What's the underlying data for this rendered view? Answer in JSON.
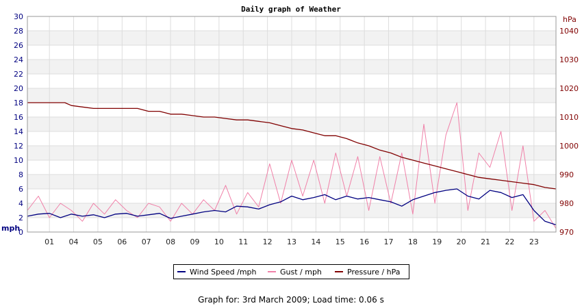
{
  "chart_data": {
    "type": "line",
    "title": "Daily graph of Weather",
    "left_axis": {
      "unit_label": "mph",
      "ylim": [
        0,
        30
      ],
      "ticks": [
        "0",
        "2",
        "4",
        "6",
        "8",
        "10",
        "12",
        "14",
        "16",
        "18",
        "20",
        "22",
        "24",
        "26",
        "28",
        "30"
      ],
      "color": "#000080"
    },
    "right_axis": {
      "unit_label": "hPa",
      "ylim": [
        970,
        1045
      ],
      "ticks": [
        "970",
        "980",
        "990",
        "1000",
        "1010",
        "1020",
        "1030",
        "1040"
      ],
      "color": "#800000"
    },
    "x_axis": {
      "xlim": [
        0,
        24
      ],
      "ticks": [
        "01",
        "04",
        "05",
        "06",
        "07",
        "08",
        "09",
        "10",
        "11",
        "12",
        "13",
        "14",
        "15",
        "16",
        "17",
        "18",
        "19",
        "20",
        "21",
        "22",
        "23"
      ]
    },
    "grid": true,
    "legend_position": "bottom-center",
    "series": [
      {
        "name": "Wind Speed /mph",
        "axis": "left",
        "color": "#000080",
        "x": [
          0,
          0.5,
          1,
          1.5,
          2,
          2.5,
          3,
          3.5,
          4,
          4.5,
          5,
          5.5,
          6,
          6.5,
          7,
          7.5,
          8,
          8.5,
          9,
          9.5,
          10,
          10.5,
          11,
          11.5,
          12,
          12.5,
          13,
          13.5,
          14,
          14.5,
          15,
          15.5,
          16,
          16.5,
          17,
          17.5,
          18,
          18.5,
          19,
          19.5,
          20,
          20.5,
          21,
          21.5,
          22,
          22.5,
          23,
          23.5,
          24
        ],
        "values": [
          2.2,
          2.5,
          2.6,
          2.0,
          2.5,
          2.2,
          2.4,
          2.0,
          2.5,
          2.6,
          2.2,
          2.4,
          2.6,
          1.9,
          2.2,
          2.5,
          2.8,
          3.0,
          2.8,
          3.6,
          3.5,
          3.2,
          3.8,
          4.2,
          5.0,
          4.5,
          4.8,
          5.2,
          4.5,
          5.0,
          4.6,
          4.8,
          4.5,
          4.2,
          3.6,
          4.5,
          5.0,
          5.5,
          5.8,
          6.0,
          5.0,
          4.6,
          5.8,
          5.5,
          4.8,
          5.2,
          3.0,
          1.5,
          1.0
        ]
      },
      {
        "name": "Gust / mph",
        "axis": "left",
        "color": "#f080a8",
        "x": [
          0,
          0.5,
          1,
          1.5,
          2,
          2.5,
          3,
          3.5,
          4,
          4.5,
          5,
          5.5,
          6,
          6.5,
          7,
          7.5,
          8,
          8.5,
          9,
          9.5,
          10,
          10.5,
          11,
          11.5,
          12,
          12.5,
          13,
          13.5,
          14,
          14.5,
          15,
          15.5,
          16,
          16.5,
          17,
          17.5,
          18,
          18.5,
          19,
          19.5,
          20,
          20.5,
          21,
          21.5,
          22,
          22.5,
          23,
          23.5,
          24
        ],
        "values": [
          3.0,
          5.0,
          2.0,
          4.0,
          3.0,
          1.5,
          4.0,
          2.5,
          4.5,
          3.0,
          2.0,
          4.0,
          3.5,
          1.5,
          4.0,
          2.5,
          4.5,
          3.0,
          6.5,
          2.5,
          5.5,
          3.5,
          9.5,
          4.0,
          10.0,
          5.0,
          10.0,
          4.0,
          11.0,
          5.0,
          10.5,
          3.0,
          10.5,
          4.0,
          11.0,
          2.5,
          15.0,
          4.0,
          13.5,
          18.0,
          3.0,
          11.0,
          9.0,
          14.0,
          3.0,
          12.0,
          1.5,
          3.0,
          0.5
        ]
      },
      {
        "name": "Pressure / hPa",
        "axis": "right",
        "color": "#800000",
        "x": [
          0,
          1.7,
          2,
          3,
          3.6,
          4,
          5,
          5.5,
          6,
          6.5,
          7,
          7.5,
          8,
          8.5,
          9,
          9.5,
          10,
          10.5,
          11,
          11.5,
          12,
          12.5,
          13,
          13.5,
          14,
          14.5,
          15,
          15.5,
          16,
          16.5,
          17,
          17.5,
          18,
          18.5,
          19,
          19.5,
          20,
          20.5,
          21,
          21.5,
          22,
          22.5,
          23,
          23.5,
          24
        ],
        "values": [
          1015,
          1015,
          1014,
          1013,
          1013,
          1013,
          1013,
          1012,
          1012,
          1011,
          1011,
          1010.5,
          1010,
          1010,
          1009.5,
          1009,
          1009,
          1008.5,
          1008,
          1007,
          1006,
          1005.5,
          1004.5,
          1003.5,
          1003.5,
          1002.5,
          1001,
          1000,
          998.5,
          997.5,
          996,
          995,
          994,
          993,
          992,
          991,
          990,
          989,
          988.5,
          988,
          987.5,
          987,
          986.5,
          985.5,
          985
        ]
      }
    ]
  },
  "footer": {
    "text": "Graph for: 3rd March 2009; Load time: 0.06 s"
  }
}
